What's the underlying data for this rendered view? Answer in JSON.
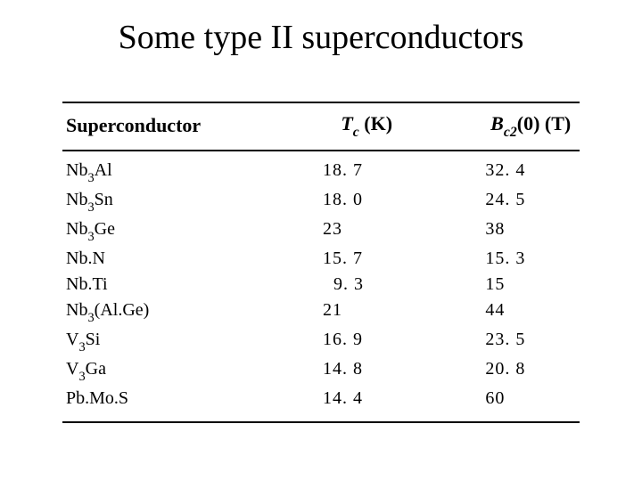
{
  "title": "Some type II superconductors",
  "headers": {
    "superconductor": "Superconductor",
    "tc_var": "T",
    "tc_sub": "c",
    "tc_unit": "(K)",
    "bc2_var": "B",
    "bc2_sub": "c2",
    "bc2_arg": "(0)",
    "bc2_unit": "(T)"
  },
  "rows": [
    {
      "sc_main1": "Nb",
      "sc_sub1": "3",
      "sc_main2": "Al",
      "sc_sub2": "",
      "sc_tail": "",
      "tc": "18. 7",
      "bc2": "32. 4"
    },
    {
      "sc_main1": "Nb",
      "sc_sub1": "3",
      "sc_main2": "Sn",
      "sc_sub2": "",
      "sc_tail": "",
      "tc": "18. 0",
      "bc2": "24. 5"
    },
    {
      "sc_main1": "Nb",
      "sc_sub1": "3",
      "sc_main2": "Ge",
      "sc_sub2": "",
      "sc_tail": "",
      "tc": "23",
      "bc2": "38"
    },
    {
      "sc_main1": "Nb.N",
      "sc_sub1": "",
      "sc_main2": "",
      "sc_sub2": "",
      "sc_tail": "",
      "tc": "15. 7",
      "bc2": "15. 3"
    },
    {
      "sc_main1": "Nb.Ti",
      "sc_sub1": "",
      "sc_main2": "",
      "sc_sub2": "",
      "sc_tail": "",
      "tc": "  9. 3",
      "bc2": "15"
    },
    {
      "sc_main1": "Nb",
      "sc_sub1": "3",
      "sc_main2": "(Al.Ge)",
      "sc_sub2": "",
      "sc_tail": "",
      "tc": "21",
      "bc2": "44"
    },
    {
      "sc_main1": "V",
      "sc_sub1": "3",
      "sc_main2": "Si",
      "sc_sub2": "",
      "sc_tail": "",
      "tc": "16. 9",
      "bc2": "23. 5"
    },
    {
      "sc_main1": "V",
      "sc_sub1": "3",
      "sc_main2": "Ga",
      "sc_sub2": "",
      "sc_tail": "",
      "tc": "14. 8",
      "bc2": "20. 8"
    },
    {
      "sc_main1": "Pb.Mo.S",
      "sc_sub1": "",
      "sc_main2": "",
      "sc_sub2": "",
      "sc_tail": "",
      "tc": "14. 4",
      "bc2": "60"
    }
  ]
}
